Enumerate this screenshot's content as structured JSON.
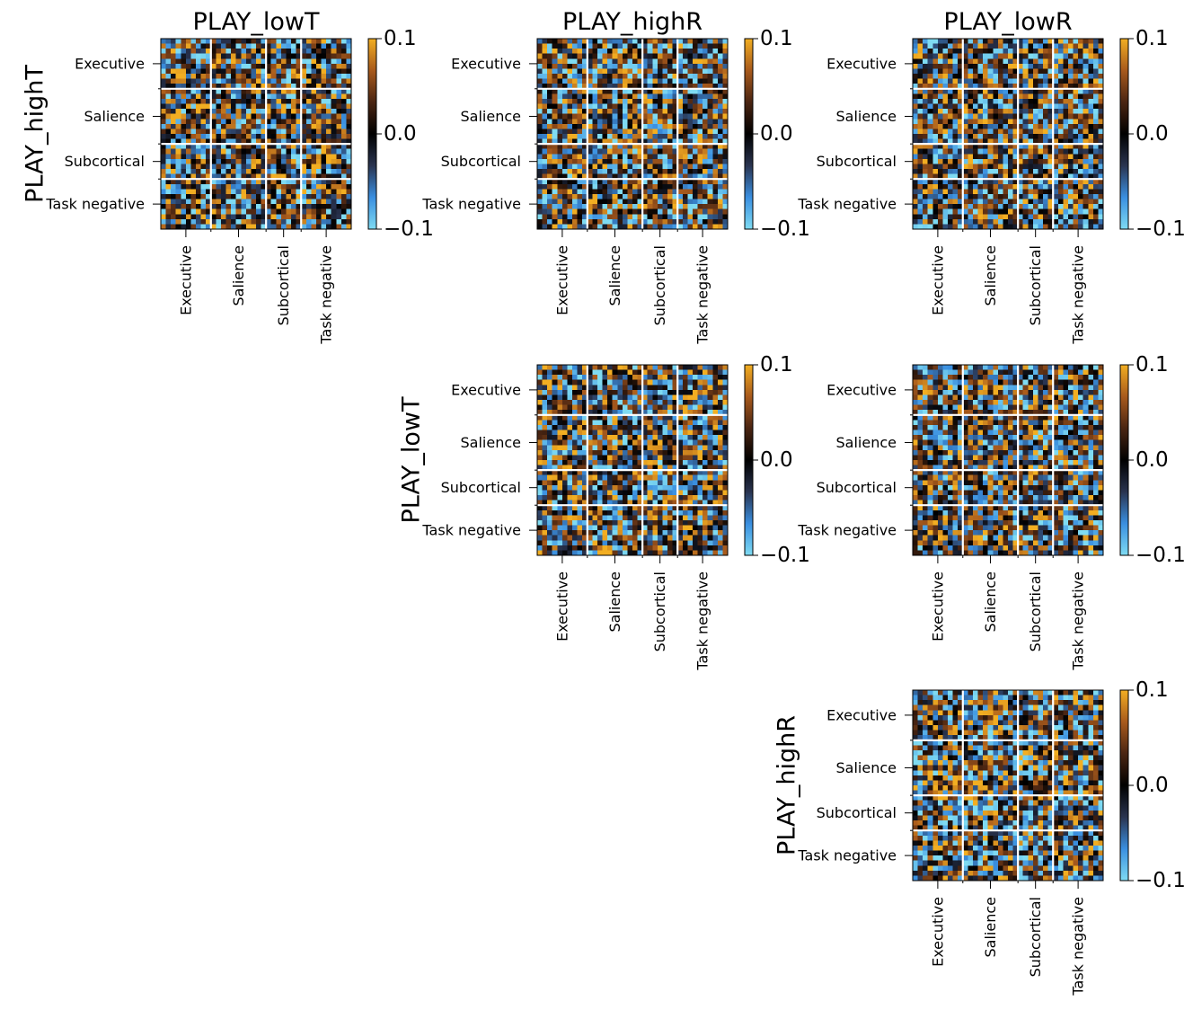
{
  "figure": {
    "colorbar": {
      "ticks": [
        0.1,
        0.0,
        -0.1
      ],
      "tick_labels": [
        "0.1",
        "0.0",
        "−0.1"
      ],
      "colors": [
        "#7fdbf2",
        "#3a8fe0",
        "#2a3450",
        "#000000",
        "#4a2512",
        "#a85a1c",
        "#f2ae22"
      ]
    }
  },
  "chart_data": [
    {
      "type": "heatmap",
      "row": 0,
      "col": 0,
      "seed": 11,
      "title": "PLAY_lowT",
      "ylabel": "PLAY_highT",
      "networks": [
        "Executive",
        "Salience",
        "Subcortical",
        "Task negative"
      ],
      "block_sizes": [
        10,
        11,
        7,
        10
      ],
      "vmin": -0.1,
      "vmax": 0.1,
      "note_values": "38x38 matrix of connectivity differences, values roughly uniform in [-0.1, 0.1]"
    },
    {
      "type": "heatmap",
      "row": 0,
      "col": 1,
      "seed": 23,
      "title": "PLAY_highR",
      "ylabel": "",
      "networks": [
        "Executive",
        "Salience",
        "Subcortical",
        "Task negative"
      ],
      "block_sizes": [
        10,
        11,
        7,
        10
      ],
      "vmin": -0.1,
      "vmax": 0.1
    },
    {
      "type": "heatmap",
      "row": 0,
      "col": 2,
      "seed": 37,
      "title": "PLAY_lowR",
      "ylabel": "",
      "networks": [
        "Executive",
        "Salience",
        "Subcortical",
        "Task negative"
      ],
      "block_sizes": [
        10,
        11,
        7,
        10
      ],
      "vmin": -0.1,
      "vmax": 0.1
    },
    {
      "type": "heatmap",
      "row": 1,
      "col": 1,
      "seed": 41,
      "title": "",
      "ylabel": "PLAY_lowT",
      "networks": [
        "Executive",
        "Salience",
        "Subcortical",
        "Task negative"
      ],
      "block_sizes": [
        10,
        11,
        7,
        10
      ],
      "vmin": -0.1,
      "vmax": 0.1
    },
    {
      "type": "heatmap",
      "row": 1,
      "col": 2,
      "seed": 53,
      "title": "",
      "ylabel": "",
      "networks": [
        "Executive",
        "Salience",
        "Subcortical",
        "Task negative"
      ],
      "block_sizes": [
        10,
        11,
        7,
        10
      ],
      "vmin": -0.1,
      "vmax": 0.1
    },
    {
      "type": "heatmap",
      "row": 2,
      "col": 2,
      "seed": 67,
      "title": "",
      "ylabel": "PLAY_highR",
      "networks": [
        "Executive",
        "Salience",
        "Subcortical",
        "Task negative"
      ],
      "block_sizes": [
        10,
        11,
        7,
        10
      ],
      "vmin": -0.1,
      "vmax": 0.1
    }
  ]
}
